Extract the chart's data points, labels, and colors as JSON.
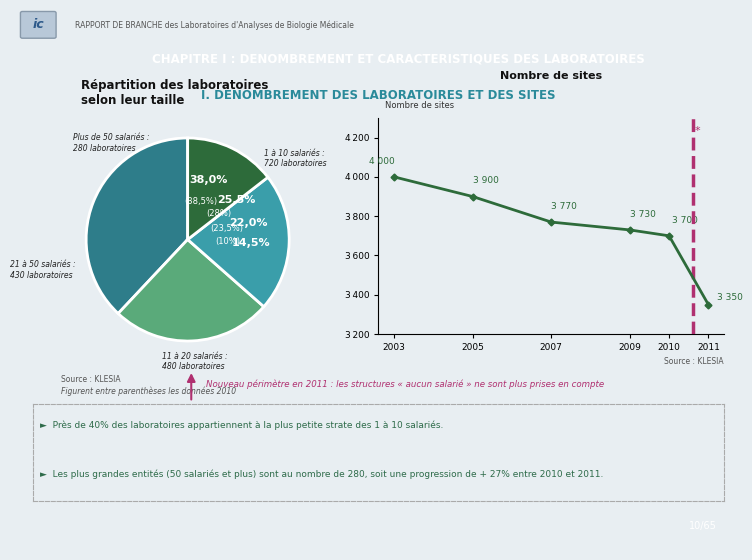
{
  "bg_color": "#e8eef2",
  "header_bg": "#2e7d4f",
  "header_text": "CHAPITRE I : DENOMBREMENT ET CARACTERISTIQUES DES LABORATOIRES",
  "subheader_text": "I. DENOMBREMENT DES LABORATOIRES ET DES SITES",
  "subheader_color": "#2a8a9a",
  "top_label": "RAPPORT DE BRANCHE des Laboratoires d'Analyses de Biologie Médicale",
  "pie_title": "Répartition des laboratoires\nselon leur taille",
  "pie_sizes": [
    38.0,
    25.5,
    22.0,
    14.5
  ],
  "pie_colors": [
    "#2e7d8a",
    "#5aaa7a",
    "#3a9eaa",
    "#2d6b3a"
  ],
  "pie_labels_pct": [
    "38,0%",
    "25,5%",
    "22,0%",
    "14,5%"
  ],
  "pie_labels_paren": [
    "(38,5%)",
    "(28%)",
    "(23,5%)",
    "(10%)"
  ],
  "pie_annot_texts": [
    "1 à 10 salariés :\n720 laboratoires",
    "11 à 20 salariés :\n480 laboratoires",
    "21 à 50 salariés :\n430 laboratoires",
    "Plus de 50 salariés :\n280 laboratoires"
  ],
  "source_pie": "Source : KLESIA",
  "note_pie": "Figurent entre parenthèses les données 2010",
  "line_title": "Nombre de sites",
  "line_ylabel": "Nombre de sites",
  "line_years": [
    2003,
    2005,
    2007,
    2009,
    2010,
    2011
  ],
  "line_values": [
    4000,
    3900,
    3770,
    3730,
    3700,
    3350
  ],
  "line_color": "#2d6b3a",
  "line_labels": [
    "4 000",
    "3 900",
    "3 770",
    "3 730",
    "3 700",
    "3 350"
  ],
  "vline_x": 2010.6,
  "vline_color": "#b03070",
  "ylim_line": [
    3200,
    4300
  ],
  "yticks_line": [
    3200,
    3400,
    3600,
    3800,
    4000,
    4200
  ],
  "source_line": "Source : KLESIA",
  "arrow_note": "Nouveau périmètre en 2011 : les structures « aucun salarié » ne sont plus prises en compte",
  "bullet1": "Près de 40% des laboratoires appartiennent à la plus petite strate des 1 à 10 salariés.",
  "bullet2": "Les plus grandes entités (50 salariés et plus) sont au nombre de 280, soit une progression de + 27% entre 2010 et 2011.",
  "page_num": "10/65",
  "page_bg": "#2e4a7a"
}
